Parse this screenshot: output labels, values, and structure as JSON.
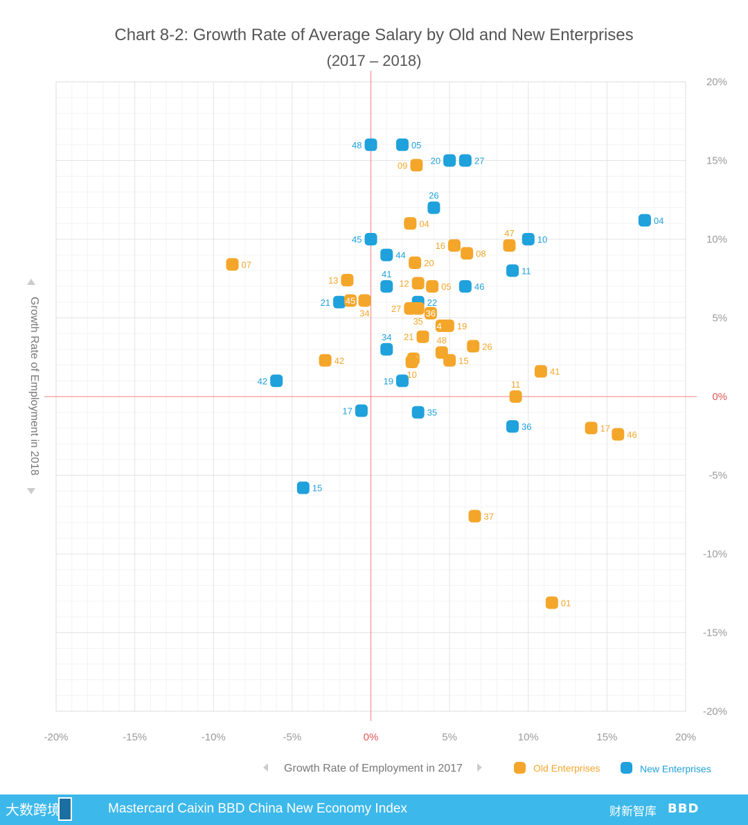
{
  "footer": {
    "index_name": "Mastercard Caixin BBD China New Economy Index",
    "logo_left": "大数跨境",
    "logo_caixin": "财新智库",
    "logo_bbd": "BBD"
  },
  "chart_data": {
    "type": "scatter",
    "title": "Chart 8-2: Growth Rate of Average Salary by Old and New Enterprises",
    "subtitle": "(2017 – 2018)",
    "xlabel": "Growth Rate of Employment in 2017",
    "ylabel": "Growth Rate of Employment in 2018",
    "xlim": [
      -20,
      20
    ],
    "ylim": [
      -20,
      20
    ],
    "x_ticks": [
      "-20%",
      "-15%",
      "-10%",
      "-5%",
      "0%",
      "5%",
      "10%",
      "15%",
      "20%"
    ],
    "y_ticks": [
      "20%",
      "15%",
      "10%",
      "5%",
      "0%",
      "-5%",
      "-10%",
      "-15%",
      "-20%"
    ],
    "grid": true,
    "legend_position": "bottom-right",
    "colors": {
      "old": "#f4a62a",
      "new": "#1fa1dc",
      "zero_line": "#f08080"
    },
    "series": [
      {
        "name": "Old Enterprises",
        "points": [
          {
            "label": "09",
            "x": 2.9,
            "y": 14.7
          },
          {
            "label": "04",
            "x": 2.5,
            "y": 11.0
          },
          {
            "label": "47",
            "x": 8.8,
            "y": 9.6
          },
          {
            "label": "16",
            "x": 5.3,
            "y": 9.6
          },
          {
            "label": "08",
            "x": 6.1,
            "y": 9.1
          },
          {
            "label": "07",
            "x": -8.8,
            "y": 8.4
          },
          {
            "label": "20",
            "x": 2.8,
            "y": 8.5
          },
          {
            "label": "13",
            "x": -1.5,
            "y": 7.4
          },
          {
            "label": "12",
            "x": 3.0,
            "y": 7.2
          },
          {
            "label": "05",
            "x": 3.9,
            "y": 7.0
          },
          {
            "label": "45",
            "x": -1.3,
            "y": 6.1
          },
          {
            "label": "34",
            "x": -0.4,
            "y": 6.1
          },
          {
            "label": "27",
            "x": 2.5,
            "y": 5.6
          },
          {
            "label": "35",
            "x": 3.0,
            "y": 5.6
          },
          {
            "label": "36",
            "x": 3.8,
            "y": 5.3
          },
          {
            "label": "44",
            "x": 4.5,
            "y": 4.5
          },
          {
            "label": "19",
            "x": 4.9,
            "y": 4.5
          },
          {
            "label": "21",
            "x": 3.3,
            "y": 3.8
          },
          {
            "label": "48",
            "x": 4.5,
            "y": 2.8
          },
          {
            "label": "26",
            "x": 6.5,
            "y": 3.2
          },
          {
            "label": "22",
            "x": 2.7,
            "y": 2.4
          },
          {
            "label": "10",
            "x": 2.6,
            "y": 2.2
          },
          {
            "label": "15",
            "x": 5.0,
            "y": 2.3
          },
          {
            "label": "42",
            "x": -2.9,
            "y": 2.3
          },
          {
            "label": "41",
            "x": 10.8,
            "y": 1.6
          },
          {
            "label": "11",
            "x": 9.2,
            "y": 0.0
          },
          {
            "label": "17",
            "x": 14.0,
            "y": -2.0
          },
          {
            "label": "46",
            "x": 15.7,
            "y": -2.4
          },
          {
            "label": "37",
            "x": 6.6,
            "y": -7.6
          },
          {
            "label": "01",
            "x": 11.5,
            "y": -13.1
          }
        ]
      },
      {
        "name": "New Enterprises",
        "points": [
          {
            "label": "48",
            "x": 0.0,
            "y": 16.0
          },
          {
            "label": "05",
            "x": 2.0,
            "y": 16.0
          },
          {
            "label": "20",
            "x": 5.0,
            "y": 15.0
          },
          {
            "label": "27",
            "x": 6.0,
            "y": 15.0
          },
          {
            "label": "26",
            "x": 4.0,
            "y": 12.0
          },
          {
            "label": "04",
            "x": 17.4,
            "y": 11.2
          },
          {
            "label": "45",
            "x": 0.0,
            "y": 10.0
          },
          {
            "label": "10",
            "x": 10.0,
            "y": 10.0
          },
          {
            "label": "44",
            "x": 1.0,
            "y": 9.0
          },
          {
            "label": "11",
            "x": 9.0,
            "y": 8.0
          },
          {
            "label": "41",
            "x": 1.0,
            "y": 7.0
          },
          {
            "label": "46",
            "x": 6.0,
            "y": 7.0
          },
          {
            "label": "21",
            "x": -2.0,
            "y": 6.0
          },
          {
            "label": "22",
            "x": 3.0,
            "y": 6.0
          },
          {
            "label": "34",
            "x": 1.0,
            "y": 3.0
          },
          {
            "label": "42",
            "x": -6.0,
            "y": 1.0
          },
          {
            "label": "19",
            "x": 2.0,
            "y": 1.0
          },
          {
            "label": "17",
            "x": -0.6,
            "y": -0.9
          },
          {
            "label": "35",
            "x": 3.0,
            "y": -1.0
          },
          {
            "label": "36",
            "x": 9.0,
            "y": -1.9
          },
          {
            "label": "15",
            "x": -4.3,
            "y": -5.8
          }
        ]
      }
    ]
  }
}
